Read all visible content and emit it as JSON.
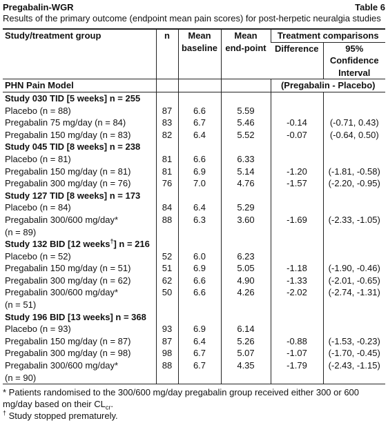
{
  "header": {
    "title": "Pregabalin-WGR",
    "label": "Table 6",
    "caption": "Results of the primary outcome (endpoint mean pain scores) for post-herpetic neuralgia studies"
  },
  "table": {
    "columns": [
      [
        "Study/treatment group"
      ],
      [
        "n"
      ],
      [
        "Mean",
        "baseline"
      ],
      [
        "Mean",
        "end-point"
      ],
      [
        "Treatment comparisons"
      ],
      [
        "Difference"
      ],
      [
        "95%",
        "Confidence",
        "Interval"
      ]
    ],
    "model_row": [
      "PHN Pain Model",
      "(Pregabalin - Placebo)"
    ],
    "rows": [
      {
        "group": "Study 030 TID [5 weeks] n = 255"
      },
      {
        "cells": [
          [
            "Placebo (n = 88)"
          ],
          "87",
          "6.6",
          "5.59"
        ]
      },
      {
        "cells": [
          [
            "Pregabalin 75 mg/day (n = 84)"
          ],
          "83",
          "6.7",
          "5.46",
          "-0.14",
          "(-0.71, 0.43)"
        ]
      },
      {
        "cells": [
          [
            "Pregabalin 150 mg/day (n = 83)"
          ],
          "82",
          "6.4",
          "5.52",
          "-0.07",
          "(-0.64, 0.50)"
        ]
      },
      {
        "group": "Study 045 TID [8 weeks] n = 238"
      },
      {
        "cells": [
          [
            "Placebo (n = 81)"
          ],
          "81",
          "6.6",
          "6.33"
        ]
      },
      {
        "cells": [
          [
            "Pregabalin 150 mg/day (n = 81)"
          ],
          "81",
          "6.9",
          "5.14",
          "-1.20",
          "(-1.81, -0.58)"
        ]
      },
      {
        "cells": [
          [
            "Pregabalin 300 mg/day (n = 76)"
          ],
          "76",
          "7.0",
          "4.76",
          "-1.57",
          "(-2.20, -0.95)"
        ]
      },
      {
        "group": "Study 127 TID [8 weeks] n = 173"
      },
      {
        "cells": [
          [
            "Placebo (n = 84)"
          ],
          "84",
          "6.4",
          "5.29"
        ]
      },
      {
        "cells": [
          [
            "Pregabalin 300/600 mg/day*",
            "(n = 89)"
          ],
          "88",
          "6.3",
          "3.60",
          "-1.69",
          "(-2.33, -1.05)"
        ]
      },
      {
        "group": "Study 132 BID [12 weeks",
        "sup": "†",
        "group_end": "] n = 216"
      },
      {
        "cells": [
          [
            "Placebo (n = 52)"
          ],
          "52",
          "6.0",
          "6.23"
        ]
      },
      {
        "cells": [
          [
            "Pregabalin 150 mg/day (n = 51)"
          ],
          "51",
          "6.9",
          "5.05",
          "-1.18",
          "(-1.90, -0.46)"
        ]
      },
      {
        "cells": [
          [
            "Pregabalin 300 mg/day (n = 62)"
          ],
          "62",
          "6.6",
          "4.90",
          "-1.33",
          "(-2.01, -0.65)"
        ]
      },
      {
        "cells": [
          [
            "Pregabalin 300/600 mg/day*",
            "(n = 51)"
          ],
          "50",
          "6.6",
          "4.26",
          "-2.02",
          "(-2.74, -1.31)"
        ]
      },
      {
        "group": "Study 196 BID [13 weeks] n = 368"
      },
      {
        "cells": [
          [
            "Placebo (n = 93)"
          ],
          "93",
          "6.9",
          "6.14"
        ]
      },
      {
        "cells": [
          [
            "Pregabalin 150 mg/day (n = 87)"
          ],
          "87",
          "6.4",
          "5.26",
          "-0.88",
          "(-1.53, -0.23)"
        ]
      },
      {
        "cells": [
          [
            "Pregabalin 300 mg/day (n = 98)"
          ],
          "98",
          "6.7",
          "5.07",
          "-1.07",
          "(-1.70, -0.45)"
        ]
      },
      {
        "cells": [
          [
            "Pregabalin 300/600 mg/day*",
            "(n = 90)"
          ],
          "88",
          "6.7",
          "4.35",
          "-1.79",
          "(-2.43, -1.15)"
        ]
      }
    ]
  },
  "footnotes": [
    {
      "text": "* Patients randomised to the 300/600 mg/day pregabalin group received either 300 or 600 mg/day based on their CL",
      "sub": "cr",
      "end": "."
    },
    {
      "sup": "†",
      "text": " Study stopped prematurely."
    }
  ]
}
